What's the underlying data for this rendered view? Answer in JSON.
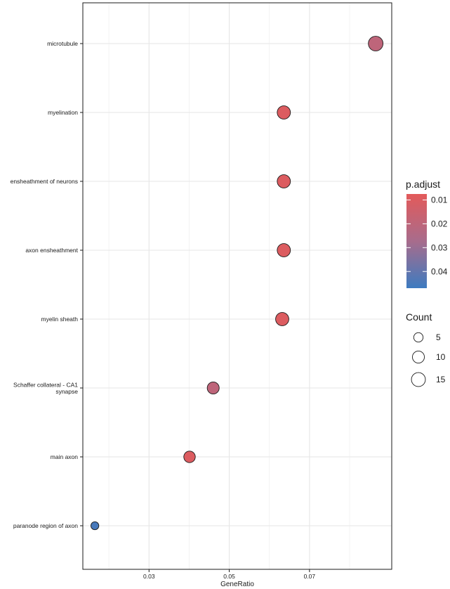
{
  "chart_data": {
    "type": "scatter",
    "xlabel": "GeneRatio",
    "ylabel": "",
    "xlim": [
      0.0135,
      0.0905
    ],
    "x_ticks": [
      0.03,
      0.05,
      0.07
    ],
    "x_tick_labels": [
      "0.03",
      "0.05",
      "0.07"
    ],
    "grid": true,
    "categories": [
      "microtubule",
      "myelination",
      "ensheathment of neurons",
      "axon ensheathment",
      "myelin sheath",
      "Schaffer collateral - CA1 synapse",
      "main axon",
      "paranode region of axon"
    ],
    "category_lines": [
      [
        "microtubule"
      ],
      [
        "myelination"
      ],
      [
        "ensheathment of neurons"
      ],
      [
        "axon ensheathment"
      ],
      [
        "myelin sheath"
      ],
      [
        "Schaffer collateral - CA1",
        "synapse"
      ],
      [
        "main axon"
      ],
      [
        "paranode region of axon"
      ]
    ],
    "points": [
      {
        "term": "microtubule",
        "gene_ratio": 0.0865,
        "count": 17,
        "p_adjust": 0.02
      },
      {
        "term": "myelination",
        "gene_ratio": 0.0636,
        "count": 13,
        "p_adjust": 0.01
      },
      {
        "term": "ensheathment of neurons",
        "gene_ratio": 0.0636,
        "count": 13,
        "p_adjust": 0.01
      },
      {
        "term": "axon ensheathment",
        "gene_ratio": 0.0636,
        "count": 13,
        "p_adjust": 0.01
      },
      {
        "term": "myelin sheath",
        "gene_ratio": 0.0632,
        "count": 13,
        "p_adjust": 0.01
      },
      {
        "term": "Schaffer collateral - CA1 synapse",
        "gene_ratio": 0.046,
        "count": 10,
        "p_adjust": 0.02
      },
      {
        "term": "main axon",
        "gene_ratio": 0.0401,
        "count": 9,
        "p_adjust": 0.01
      },
      {
        "term": "paranode region of axon",
        "gene_ratio": 0.0165,
        "count": 3,
        "p_adjust": 0.045
      }
    ],
    "color_legend": {
      "title": "p.adjust",
      "range": [
        0.0075,
        0.047
      ],
      "low_color": "#e35a5a",
      "mid_color": "#a86c8c",
      "high_color": "#3d7bc0",
      "breaks": [
        0.01,
        0.02,
        0.03,
        0.04
      ],
      "labels": [
        "0.01",
        "0.02",
        "0.03",
        "0.04"
      ],
      "placement": "right"
    },
    "size_legend": {
      "title": "Count",
      "breaks": [
        5,
        10,
        15
      ],
      "labels": [
        "5",
        "10",
        "15"
      ],
      "placement": "right"
    }
  }
}
